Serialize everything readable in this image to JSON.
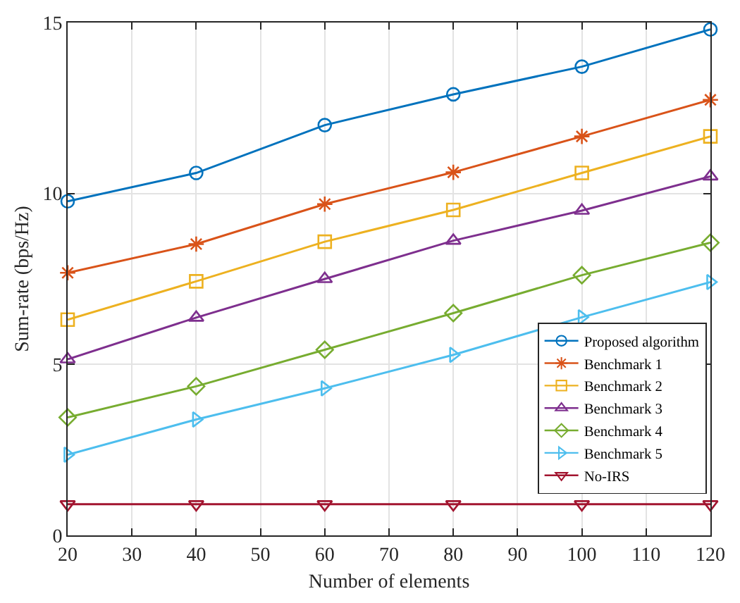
{
  "chart_data": {
    "type": "line",
    "xlabel": "Number of elements",
    "ylabel": "Sum-rate (bps/Hz)",
    "x": [
      20,
      40,
      60,
      80,
      100,
      120
    ],
    "xlim": [
      20,
      120
    ],
    "xticks": [
      20,
      30,
      40,
      50,
      60,
      70,
      80,
      90,
      100,
      110,
      120
    ],
    "ylim": [
      0,
      15
    ],
    "yticks": [
      0,
      5,
      10,
      15
    ],
    "grid": true,
    "legend": "bottom right",
    "line_style": "solid",
    "series": [
      {
        "name": "Proposed algorithm",
        "color": "#0072bd",
        "marker": "circle",
        "values": [
          9.77,
          10.6,
          12.0,
          12.9,
          13.71,
          14.8
        ]
      },
      {
        "name": "Benchmark 1",
        "color": "#d95319",
        "marker": "cross",
        "values": [
          7.68,
          8.52,
          9.69,
          10.62,
          11.67,
          12.74
        ]
      },
      {
        "name": "Benchmark 2",
        "color": "#edb120",
        "marker": "square",
        "values": [
          6.31,
          7.43,
          8.59,
          9.52,
          10.6,
          11.67
        ]
      },
      {
        "name": "Benchmark 3",
        "color": "#7e2f8e",
        "marker": "triangle",
        "values": [
          5.15,
          6.37,
          7.5,
          8.62,
          9.5,
          10.5
        ]
      },
      {
        "name": "Benchmark 4",
        "color": "#77ac30",
        "marker": "diamond",
        "values": [
          3.45,
          4.36,
          5.43,
          6.5,
          7.61,
          8.56
        ]
      },
      {
        "name": "Benchmark 5",
        "color": "#4dbeee",
        "marker": "triangle-right",
        "values": [
          2.36,
          3.39,
          4.3,
          5.28,
          6.38,
          7.41
        ]
      },
      {
        "name": "No-IRS",
        "color": "#a2142f",
        "marker": "triangle-down",
        "values": [
          0.91,
          0.91,
          0.91,
          0.91,
          0.91,
          0.91
        ]
      }
    ]
  }
}
